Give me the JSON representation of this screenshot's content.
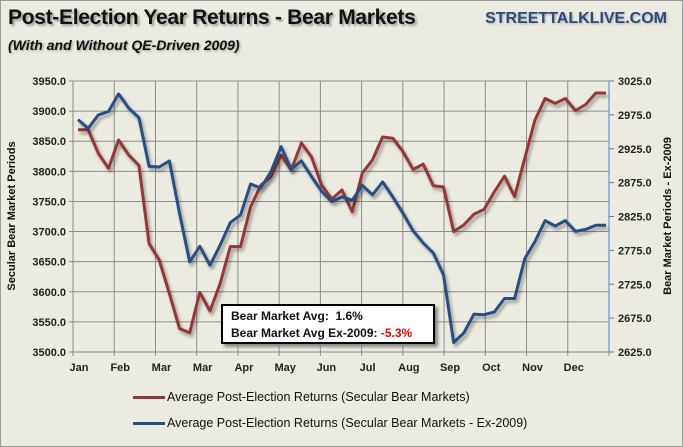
{
  "header": {
    "title": "Post-Election Year Returns - Bear Markets",
    "subtitle": "(With and Without QE-Driven 2009)",
    "brand": "STREETTALKLIVE.COM"
  },
  "annotation": {
    "line1_label": "Bear Market Avg:",
    "line1_value": "1.6%",
    "line2_label": "Bear Market Avg Ex-2009:",
    "line2_value": "-5.3%",
    "negative_color": "#ee0000"
  },
  "chart_data": {
    "type": "line",
    "title": "Post-Election Year Returns - Bear Markets",
    "x_tick_labels": [
      "Jan",
      "Feb",
      "Mar",
      "Mar",
      "Apr",
      "May",
      "Jun",
      "Jul",
      "Aug",
      "Sep",
      "Oct",
      "Nov",
      "Dec"
    ],
    "grid": true,
    "legend_position": "bottom",
    "y_left": {
      "label": "Secular Bear Market Periods",
      "range": [
        3500,
        3950
      ],
      "ticks": [
        "3500.0",
        "3550.0",
        "3600.0",
        "3650.0",
        "3700.0",
        "3750.0",
        "3800.0",
        "3850.0",
        "3900.0",
        "3950.0"
      ]
    },
    "y_right": {
      "label": "Bear Market Periods - Ex-2009",
      "range": [
        2625,
        3025
      ],
      "ticks": [
        "2625.0",
        "2675.0",
        "2725.0",
        "2775.0",
        "2825.0",
        "2875.0",
        "2925.0",
        "2975.0",
        "3025.0"
      ]
    },
    "series": [
      {
        "name": "Average Post-Election Returns (Secular Bear Markets)",
        "axis": "left",
        "color": "#953735",
        "values": [
          3869,
          3869,
          3830,
          3805,
          3852,
          3827,
          3810,
          3680,
          3653,
          3597,
          3539,
          3532,
          3599,
          3568,
          3614,
          3675,
          3675,
          3741,
          3777,
          3791,
          3827,
          3802,
          3847,
          3824,
          3777,
          3754,
          3769,
          3733,
          3797,
          3819,
          3857,
          3855,
          3833,
          3803,
          3812,
          3776,
          3774,
          3700,
          3711,
          3729,
          3737,
          3766,
          3792,
          3758,
          3822,
          3885,
          3921,
          3913,
          3921,
          3901,
          3911,
          3930,
          3930
        ]
      },
      {
        "name": "Average Post-Election Returns (Secular Bear Markets - Ex-2009)",
        "axis": "right",
        "color": "#254f85",
        "values": [
          2968,
          2955,
          2975,
          2980,
          3006,
          2985,
          2971,
          2899,
          2898,
          2907,
          2830,
          2758,
          2781,
          2753,
          2783,
          2816,
          2827,
          2873,
          2867,
          2891,
          2928,
          2895,
          2907,
          2884,
          2862,
          2847,
          2854,
          2849,
          2871,
          2857,
          2876,
          2854,
          2830,
          2804,
          2786,
          2771,
          2739,
          2639,
          2653,
          2681,
          2680,
          2684,
          2704,
          2704,
          2763,
          2788,
          2819,
          2811,
          2819,
          2803,
          2806,
          2812,
          2812
        ]
      }
    ]
  }
}
